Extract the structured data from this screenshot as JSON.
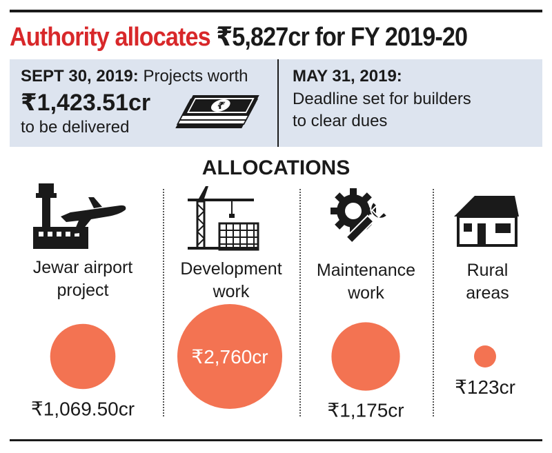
{
  "headline": {
    "red_part": "Authority allocates",
    "dark_part": "₹5,827cr for FY 2019-20"
  },
  "info_left": {
    "date": "SEPT 30, 2019:",
    "text1": "Projects worth",
    "amount": "₹1,423.51cr",
    "text2": "to be delivered",
    "icon": "banknotes-icon"
  },
  "info_right": {
    "date": "MAY 31, 2019:",
    "line1": "Deadline set for builders",
    "line2": "to clear dues"
  },
  "colors": {
    "headline_red": "#d8282a",
    "bubble": "#f37352",
    "band": "#dde4ef"
  },
  "chart_data": {
    "type": "bubble",
    "title": "ALLOCATIONS",
    "unit": "₹ crore",
    "categories": [
      {
        "line1": "Jewar airport",
        "line2": "project",
        "value": 1069.5,
        "label": "₹1,069.50cr",
        "icon": "airport-icon"
      },
      {
        "line1": "Development",
        "line2": "work",
        "value": 2760,
        "label": "₹2,760cr",
        "icon": "construction-crane-icon"
      },
      {
        "line1": "Maintenance",
        "line2": "work",
        "value": 1175,
        "label": "₹1,175cr",
        "icon": "gear-wrench-icon"
      },
      {
        "line1": "Rural",
        "line2": "areas",
        "value": 123,
        "label": "₹123cr",
        "icon": "house-icon"
      }
    ]
  }
}
